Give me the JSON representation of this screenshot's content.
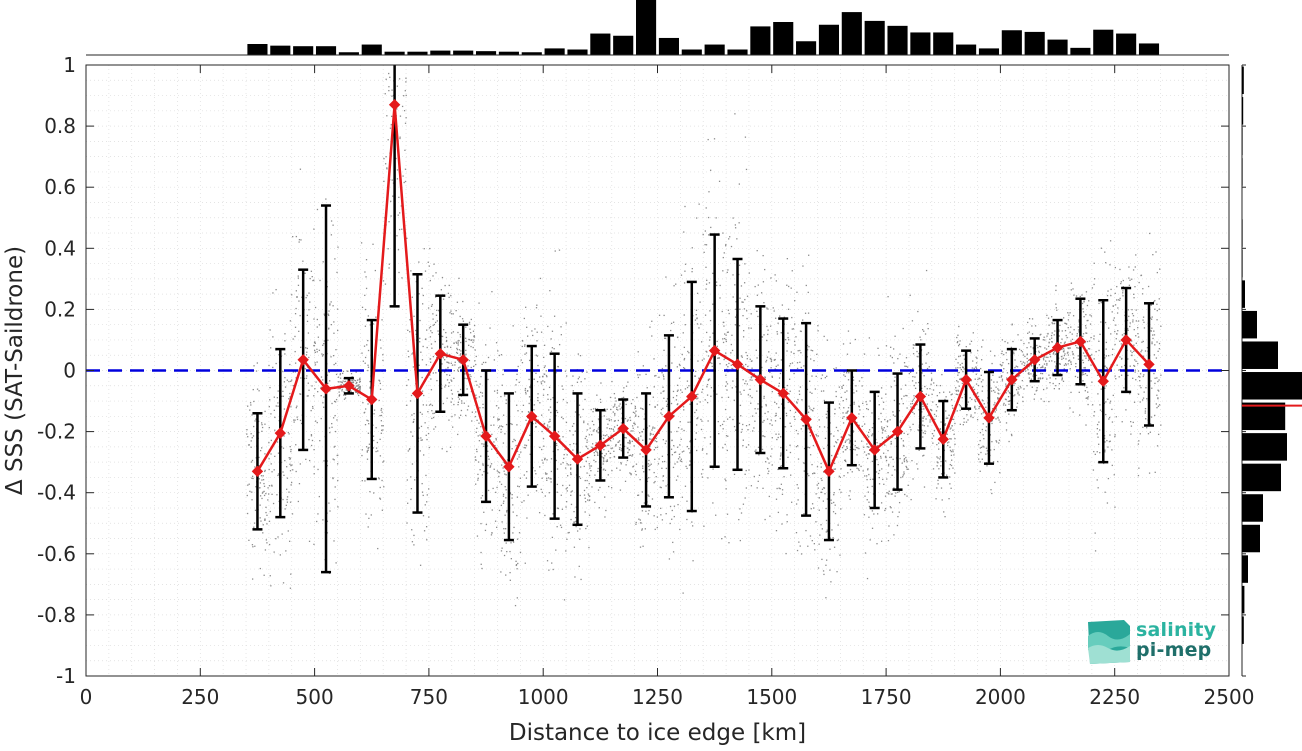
{
  "chart_data": {
    "type": "line",
    "xlabel": "Distance to ice edge [km]",
    "ylabel": "Δ SSS (SAT-Saildrone)",
    "xlim": [
      0,
      2500
    ],
    "ylim": [
      -1,
      1
    ],
    "xticks": [
      "0",
      "250",
      "500",
      "750",
      "1000",
      "1250",
      "1500",
      "1750",
      "2000",
      "2250",
      "2500"
    ],
    "yticks": [
      "-1",
      "-0.8",
      "-0.6",
      "-0.4",
      "-0.2",
      "0",
      "0.2",
      "0.4",
      "0.6",
      "0.8",
      "1"
    ],
    "grid": true,
    "reference_line": {
      "y": 0,
      "style": "dashed",
      "color": "#0000dd"
    },
    "colors": {
      "mean_line": "#e41a1c",
      "error_bars": "#000000",
      "scatter": "#8c8c8c",
      "histogram": "#000000"
    },
    "binned_mean": {
      "x": [
        375,
        425,
        475,
        525,
        575,
        625,
        675,
        725,
        775,
        825,
        875,
        925,
        975,
        1025,
        1075,
        1125,
        1175,
        1225,
        1275,
        1325,
        1375,
        1425,
        1475,
        1525,
        1575,
        1625,
        1675,
        1725,
        1775,
        1825,
        1875,
        1925,
        1975,
        2025,
        2075,
        2125,
        2175,
        2225,
        2275,
        2325
      ],
      "y": [
        -0.33,
        -0.205,
        0.035,
        -0.06,
        -0.05,
        -0.095,
        0.87,
        -0.075,
        0.055,
        0.035,
        -0.215,
        -0.315,
        -0.15,
        -0.215,
        -0.29,
        -0.245,
        -0.19,
        -0.26,
        -0.15,
        -0.085,
        0.065,
        0.02,
        -0.03,
        -0.075,
        -0.16,
        -0.33,
        -0.155,
        -0.26,
        -0.2,
        -0.085,
        -0.225,
        -0.03,
        -0.155,
        -0.03,
        0.035,
        0.075,
        0.095,
        -0.035,
        0.1,
        0.02
      ],
      "std": [
        0.19,
        0.275,
        0.295,
        0.6,
        0.025,
        0.26,
        0.66,
        0.39,
        0.19,
        0.115,
        0.215,
        0.24,
        0.23,
        0.27,
        0.215,
        0.115,
        0.095,
        0.185,
        0.265,
        0.375,
        0.38,
        0.345,
        0.24,
        0.245,
        0.315,
        0.225,
        0.155,
        0.19,
        0.19,
        0.17,
        0.125,
        0.095,
        0.15,
        0.1,
        0.07,
        0.09,
        0.14,
        0.265,
        0.17,
        0.2
      ]
    },
    "top_histogram": {
      "x": [
        375,
        425,
        475,
        525,
        575,
        625,
        675,
        725,
        775,
        825,
        875,
        925,
        975,
        1025,
        1075,
        1125,
        1175,
        1225,
        1275,
        1325,
        1375,
        1425,
        1475,
        1525,
        1575,
        1625,
        1675,
        1725,
        1775,
        1825,
        1875,
        1925,
        1975,
        2025,
        2075,
        2125,
        2175,
        2225,
        2275,
        2325
      ],
      "counts": [
        20,
        17,
        16,
        16,
        5,
        19,
        6,
        6,
        8,
        8,
        7,
        6,
        5,
        12,
        10,
        39,
        35,
        100,
        31,
        10,
        19,
        10,
        52,
        60,
        25,
        55,
        78,
        62,
        53,
        41,
        41,
        19,
        12,
        45,
        42,
        28,
        13,
        46,
        39,
        21
      ]
    },
    "side_histogram": {
      "y_bins": [
        0.95,
        0.85,
        0.75,
        0.65,
        0.55,
        0.45,
        0.35,
        0.25,
        0.15,
        0.05,
        -0.05,
        -0.15,
        -0.25,
        -0.35,
        -0.45,
        -0.55,
        -0.65,
        -0.75,
        -0.85,
        -0.95
      ],
      "counts": [
        3,
        2,
        1,
        1,
        0,
        1,
        1,
        5,
        25,
        60,
        100,
        72,
        75,
        65,
        35,
        30,
        10,
        4,
        3,
        0
      ],
      "mean_marker_y": -0.115
    },
    "logo": {
      "line1": "salinity",
      "line2": "pi-mep"
    }
  }
}
